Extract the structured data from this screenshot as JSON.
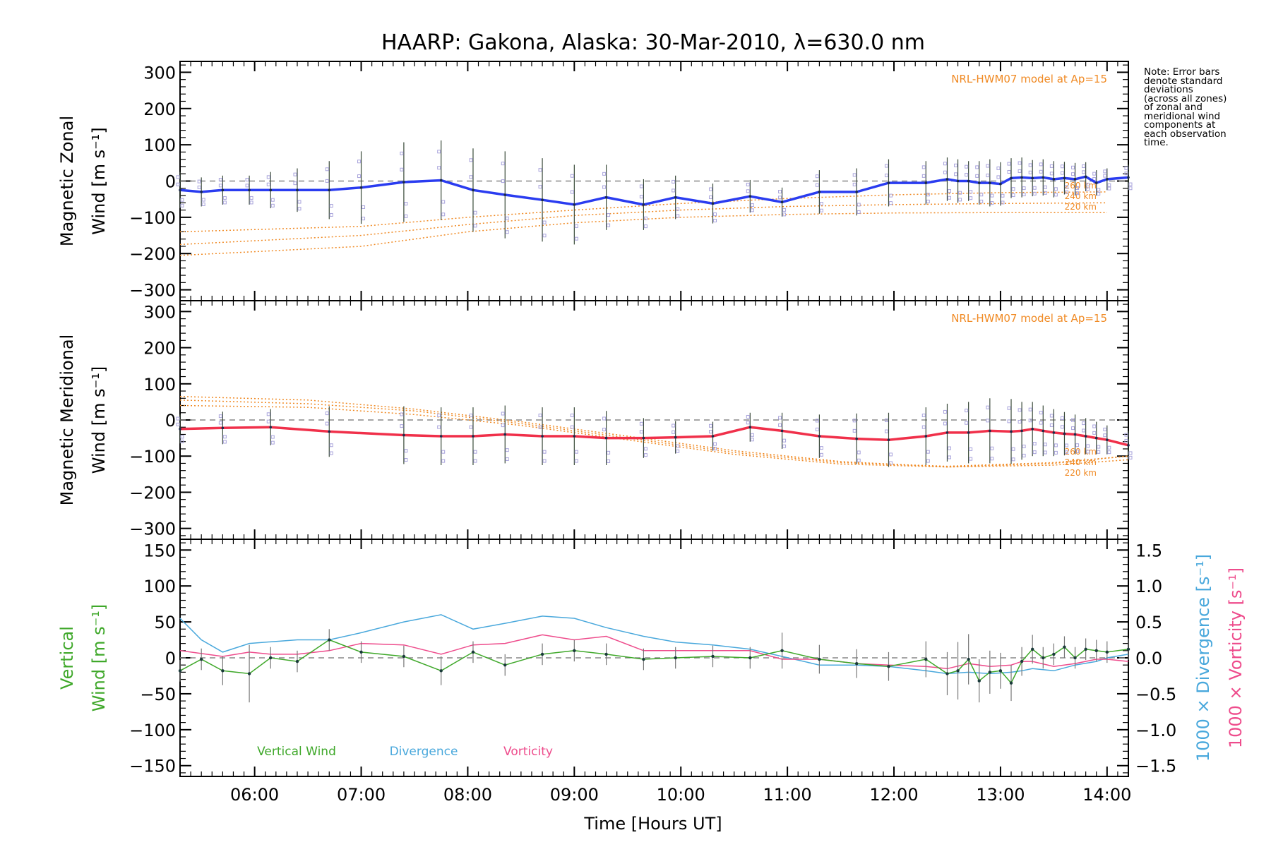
{
  "title": "HAARP: Gakona,  Alaska: 30-Mar-2010, λ=630.0 nm",
  "xlabel": "Time [Hours UT]",
  "note": [
    "Note: Error bars",
    "denote standard",
    "deviations",
    "(across all zones)",
    "of zonal and",
    "meridional wind",
    "components at",
    "each observation",
    "time."
  ],
  "colors": {
    "zonal": "#2a3cf0",
    "meridional": "#f0304a",
    "vertical": "#3fa82a",
    "divergence": "#49a8dc",
    "vorticity": "#ee4c8c",
    "model": "#f08a24",
    "zone": "#a9a4dc"
  },
  "chart_data": [
    {
      "type": "line",
      "panel": "zonal",
      "ylabel_1": "Magnetic Zonal",
      "ylabel_2": "Wind [m s⁻¹]",
      "ylim": [
        -330,
        330
      ],
      "xlim": [
        "05:18",
        "14:12"
      ],
      "x_ticks": [
        "06:00",
        "07:00",
        "08:00",
        "09:00",
        "10:00",
        "11:00",
        "12:00",
        "13:00",
        "14:00"
      ],
      "y_ticks": [
        300,
        200,
        100,
        0,
        -100,
        -200,
        -300
      ],
      "model_label": "NRL-HWM07 model at Ap=15",
      "model_curve_labels": [
        "260 km",
        "240 km",
        "220 km"
      ],
      "model_curves": [
        {
          "label": "260 km",
          "x": [
            "05:18",
            "07:00",
            "08:00",
            "09:00",
            "10:00",
            "11:00",
            "12:00",
            "13:00",
            "14:00"
          ],
          "y": [
            -140,
            -125,
            -100,
            -80,
            -62,
            -48,
            -38,
            -32,
            -30
          ]
        },
        {
          "label": "240 km",
          "x": [
            "05:18",
            "07:00",
            "08:00",
            "09:00",
            "10:00",
            "11:00",
            "12:00",
            "13:00",
            "14:00"
          ],
          "y": [
            -175,
            -150,
            -120,
            -95,
            -80,
            -70,
            -65,
            -62,
            -60
          ]
        },
        {
          "label": "220 km",
          "x": [
            "05:18",
            "07:00",
            "08:00",
            "09:00",
            "10:00",
            "11:00",
            "12:00",
            "13:00",
            "14:00"
          ],
          "y": [
            -205,
            -180,
            -140,
            -115,
            -100,
            -92,
            -88,
            -87,
            -87
          ]
        }
      ],
      "series": [
        {
          "x": [
            "05:18",
            "05:30",
            "05:42",
            "05:57",
            "06:09",
            "06:24",
            "06:42",
            "07:00",
            "07:24",
            "07:45",
            "08:03",
            "08:21",
            "08:42",
            "09:00",
            "09:18",
            "09:39",
            "09:57",
            "10:18",
            "10:39",
            "10:57",
            "11:18",
            "11:39",
            "11:57",
            "12:18",
            "12:30",
            "12:36",
            "12:42",
            "12:48",
            "12:54",
            "13:00",
            "13:06",
            "13:12",
            "13:18",
            "13:24",
            "13:30",
            "13:36",
            "13:42",
            "13:48",
            "13:54",
            "14:00",
            "14:12"
          ],
          "y": [
            -25,
            -30,
            -25,
            -25,
            -25,
            -25,
            -25,
            -18,
            -3,
            2,
            -25,
            -38,
            -52,
            -65,
            -45,
            -65,
            -45,
            -62,
            -42,
            -58,
            -30,
            -30,
            -5,
            -5,
            5,
            0,
            0,
            -5,
            -5,
            -8,
            8,
            10,
            8,
            10,
            5,
            8,
            5,
            12,
            -5,
            5,
            10
          ],
          "err": [
            50,
            40,
            40,
            40,
            50,
            60,
            80,
            100,
            110,
            110,
            115,
            120,
            115,
            110,
            90,
            70,
            60,
            55,
            45,
            40,
            60,
            65,
            65,
            60,
            60,
            60,
            55,
            60,
            65,
            60,
            55,
            55,
            50,
            50,
            50,
            45,
            45,
            40,
            35,
            30,
            35
          ]
        }
      ]
    },
    {
      "type": "line",
      "panel": "meridional",
      "ylabel_1": "Magnetic Meridional",
      "ylabel_2": "Wind [m s⁻¹]",
      "ylim": [
        -330,
        330
      ],
      "xlim": [
        "05:18",
        "14:12"
      ],
      "x_ticks": [
        "06:00",
        "07:00",
        "08:00",
        "09:00",
        "10:00",
        "11:00",
        "12:00",
        "13:00",
        "14:00"
      ],
      "y_ticks": [
        300,
        200,
        100,
        0,
        -100,
        -200,
        -300
      ],
      "model_label": "NRL-HWM07 model at Ap=15",
      "model_curve_labels": [
        "260 km",
        "240 km",
        "220 km"
      ],
      "model_curves": [
        {
          "label": "260 km",
          "x": [
            "05:18",
            "06:30",
            "07:30",
            "08:30",
            "09:30",
            "10:30",
            "11:30",
            "12:30",
            "13:30",
            "14:12"
          ],
          "y": [
            65,
            55,
            30,
            -5,
            -45,
            -85,
            -115,
            -130,
            -120,
            -100
          ]
        },
        {
          "label": "240 km",
          "x": [
            "05:18",
            "06:30",
            "07:30",
            "08:30",
            "09:30",
            "10:30",
            "11:30",
            "12:30",
            "13:30",
            "14:12"
          ],
          "y": [
            55,
            45,
            25,
            -10,
            -50,
            -90,
            -118,
            -128,
            -118,
            -100
          ]
        },
        {
          "label": "220 km",
          "x": [
            "05:18",
            "06:30",
            "07:30",
            "08:30",
            "09:30",
            "10:30",
            "11:30",
            "12:30",
            "13:30",
            "14:12"
          ],
          "y": [
            40,
            35,
            15,
            -15,
            -55,
            -95,
            -122,
            -130,
            -125,
            -110
          ]
        }
      ],
      "series": [
        {
          "x": [
            "05:18",
            "05:42",
            "06:09",
            "06:42",
            "07:24",
            "07:45",
            "08:03",
            "08:21",
            "08:42",
            "09:00",
            "09:18",
            "09:39",
            "09:57",
            "10:18",
            "10:39",
            "10:57",
            "11:18",
            "11:39",
            "11:57",
            "12:18",
            "12:30",
            "12:42",
            "12:54",
            "13:06",
            "13:12",
            "13:18",
            "13:24",
            "13:30",
            "13:36",
            "13:42",
            "13:48",
            "13:54",
            "14:00",
            "14:12"
          ],
          "y": [
            -25,
            -22,
            -20,
            -32,
            -42,
            -45,
            -45,
            -40,
            -45,
            -45,
            -50,
            -50,
            -48,
            -45,
            -20,
            -30,
            -45,
            -52,
            -55,
            -45,
            -35,
            -35,
            -30,
            -32,
            -30,
            -25,
            -30,
            -35,
            -38,
            -40,
            -45,
            -50,
            -55,
            -70
          ],
          "err": [
            40,
            45,
            50,
            70,
            80,
            80,
            80,
            80,
            80,
            80,
            75,
            55,
            45,
            40,
            40,
            50,
            60,
            70,
            75,
            80,
            80,
            85,
            90,
            90,
            80,
            75,
            70,
            65,
            60,
            55,
            50,
            45,
            40,
            40
          ]
        }
      ]
    },
    {
      "type": "line",
      "panel": "vertical",
      "ylabel_1": "Vertical",
      "ylabel_2": "Wind [m s⁻¹]",
      "y2label_1": "1000 × Divergence [s⁻¹]",
      "y2label_2": "1000 × Vorticity [s⁻¹]",
      "ylim": [
        -165,
        165
      ],
      "y2lim": [
        -1.65,
        1.65
      ],
      "xlim": [
        "05:18",
        "14:12"
      ],
      "x_ticks": [
        "06:00",
        "07:00",
        "08:00",
        "09:00",
        "10:00",
        "11:00",
        "12:00",
        "13:00",
        "14:00"
      ],
      "y_ticks": [
        150,
        100,
        50,
        0,
        -50,
        -100,
        -150
      ],
      "y2_ticks": [
        "1.5",
        "1.0",
        "0.5",
        "0.0",
        "−0.5",
        "−1.0",
        "−1.5"
      ],
      "legend": [
        "Vertical Wind",
        "Divergence",
        "Vorticity"
      ],
      "series": [
        {
          "name": "Vertical Wind",
          "axis": "left",
          "x": [
            "05:18",
            "05:30",
            "05:42",
            "05:57",
            "06:09",
            "06:24",
            "06:42",
            "07:00",
            "07:24",
            "07:45",
            "08:03",
            "08:21",
            "08:42",
            "09:00",
            "09:18",
            "09:39",
            "09:57",
            "10:18",
            "10:39",
            "10:57",
            "11:18",
            "11:39",
            "11:57",
            "12:18",
            "12:30",
            "12:36",
            "12:42",
            "12:48",
            "12:54",
            "13:00",
            "13:06",
            "13:12",
            "13:18",
            "13:24",
            "13:30",
            "13:36",
            "13:42",
            "13:48",
            "13:54",
            "14:00",
            "14:12"
          ],
          "y": [
            -18,
            -2,
            -18,
            -22,
            0,
            -5,
            25,
            8,
            2,
            -18,
            8,
            -10,
            5,
            10,
            5,
            -2,
            0,
            2,
            0,
            10,
            -2,
            -8,
            -12,
            -2,
            -22,
            -18,
            -2,
            -32,
            -20,
            -18,
            -35,
            -5,
            12,
            0,
            5,
            15,
            0,
            12,
            10,
            8,
            12
          ],
          "err": [
            15,
            15,
            20,
            40,
            15,
            15,
            15,
            15,
            15,
            20,
            15,
            15,
            15,
            15,
            15,
            15,
            15,
            15,
            15,
            25,
            20,
            20,
            20,
            25,
            30,
            40,
            35,
            30,
            30,
            25,
            25,
            20,
            20,
            15,
            15,
            15,
            15,
            15,
            15,
            15,
            15
          ]
        },
        {
          "name": "Divergence",
          "axis": "right",
          "x": [
            "05:18",
            "05:30",
            "05:42",
            "05:57",
            "06:24",
            "06:42",
            "07:00",
            "07:24",
            "07:45",
            "08:03",
            "08:21",
            "08:42",
            "09:00",
            "09:18",
            "09:39",
            "09:57",
            "10:18",
            "10:39",
            "10:57",
            "11:18",
            "11:39",
            "11:57",
            "12:18",
            "12:30",
            "12:42",
            "12:54",
            "13:06",
            "13:12",
            "13:18",
            "13:30",
            "13:42",
            "13:54",
            "14:00",
            "14:12"
          ],
          "y": [
            0.55,
            0.25,
            0.08,
            0.2,
            0.25,
            0.25,
            0.35,
            0.5,
            0.6,
            0.4,
            0.48,
            0.58,
            0.55,
            0.42,
            0.3,
            0.22,
            0.18,
            0.12,
            0.02,
            -0.1,
            -0.1,
            -0.12,
            -0.18,
            -0.22,
            -0.2,
            -0.22,
            -0.2,
            -0.18,
            -0.15,
            -0.18,
            -0.1,
            -0.05,
            0.0,
            0.05
          ]
        },
        {
          "name": "Vorticity",
          "axis": "right",
          "x": [
            "05:18",
            "05:42",
            "05:57",
            "06:09",
            "06:24",
            "06:42",
            "07:00",
            "07:24",
            "07:45",
            "08:03",
            "08:21",
            "08:42",
            "09:00",
            "09:18",
            "09:39",
            "09:57",
            "10:18",
            "10:39",
            "10:57",
            "11:18",
            "11:39",
            "11:57",
            "12:18",
            "12:30",
            "12:42",
            "12:54",
            "13:06",
            "13:12",
            "13:18",
            "13:30",
            "13:42",
            "13:54",
            "14:00",
            "14:12"
          ],
          "y": [
            0.1,
            0.02,
            0.08,
            0.05,
            0.05,
            0.1,
            0.2,
            0.18,
            0.05,
            0.18,
            0.2,
            0.32,
            0.25,
            0.3,
            0.1,
            0.1,
            0.1,
            0.1,
            -0.02,
            -0.02,
            -0.08,
            -0.1,
            -0.12,
            -0.15,
            -0.08,
            -0.12,
            -0.1,
            -0.05,
            -0.05,
            -0.12,
            -0.08,
            -0.02,
            -0.02,
            -0.05
          ]
        }
      ]
    }
  ]
}
